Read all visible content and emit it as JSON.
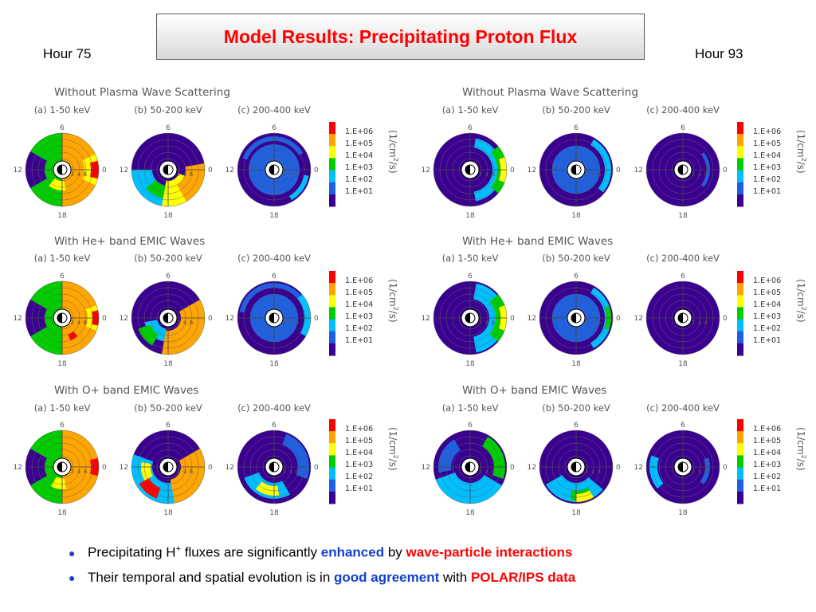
{
  "slide": {
    "title": "Model Results: Precipitating Proton Flux",
    "hour_left": "Hour 75",
    "hour_right": "Hour 93"
  },
  "panels": {
    "row_titles": [
      "Without Plasma Wave Scattering",
      "With He+ band EMIC Waves",
      "With O+ band EMIC Waves"
    ],
    "energy_labels": [
      "(a) 1-50 keV",
      "(b) 50-200 keV",
      "(c) 200-400 keV"
    ],
    "mlt_labels": {
      "noon": "12",
      "midnight": "0",
      "dawn": "6",
      "dusk": "18"
    },
    "radial_ticks": [
      "2",
      "4",
      "6"
    ],
    "colorbar_labels": [
      "1.E+06",
      "1.E+05",
      "1.E+04",
      "1.E+03",
      "1.E+02",
      "1.E+01"
    ],
    "colorbar_colors": [
      "#ff0000",
      "#ffa500",
      "#ffff00",
      "#00cc00",
      "#00bfff",
      "#1e60e0",
      "#3a0090"
    ],
    "unit_label": "(1/cm²/s)",
    "unit_parts": {
      "open": "(1/cm",
      "exponent": "2",
      "close": "/s)"
    }
  },
  "bullets": [
    {
      "prefix": "Precipitating H",
      "superscript": "+",
      "middle": " fluxes are significantly ",
      "highlight1": "enhanced",
      "joiner": " by ",
      "highlight2": "wave-particle interactions"
    },
    {
      "prefix": "Their temporal and spatial evolution is in ",
      "highlight1": "good agreement",
      "joiner": " with ",
      "highlight2": "POLAR/IPS data"
    }
  ]
}
